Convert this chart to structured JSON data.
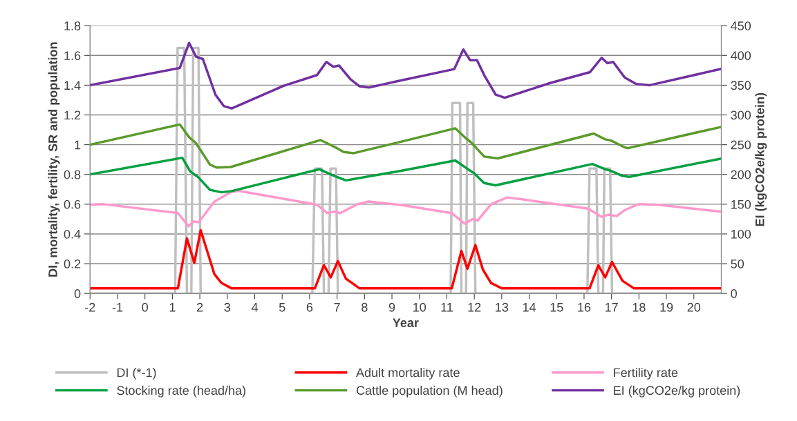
{
  "chart_data": {
    "type": "line",
    "xlabel": "Year",
    "ylabel": "DI, mortality, fertility, SR and population",
    "y2label": "EI (kgCO2e/kg protein)",
    "xlim": [
      -2,
      21
    ],
    "xticks": [
      -2,
      -1,
      0,
      1,
      2,
      3,
      4,
      5,
      6,
      7,
      8,
      9,
      10,
      11,
      12,
      13,
      14,
      15,
      16,
      17,
      18,
      19,
      20
    ],
    "ylim": [
      0,
      1.8
    ],
    "yticks": [
      0,
      0.2,
      0.4,
      0.6,
      0.8,
      1,
      1.2,
      1.4,
      1.6,
      1.8
    ],
    "y2lim": [
      0,
      450
    ],
    "y2ticks": [
      0,
      50,
      100,
      150,
      200,
      250,
      300,
      350,
      400,
      450
    ],
    "grid": "y",
    "legend": "bottom",
    "marker": "none",
    "line_style": "solid",
    "series": [
      {
        "name": "DI (*-1)",
        "color": "#bfbfbf",
        "x": [
          -2,
          1.1,
          1.19,
          1.43,
          1.53,
          1.69,
          1.76,
          1.95,
          2.03,
          6.1,
          6.19,
          6.45,
          6.52,
          6.69,
          6.76,
          6.96,
          7.03,
          11.14,
          11.2,
          11.48,
          11.53,
          11.7,
          11.75,
          11.96,
          12.04,
          16.12,
          16.2,
          16.45,
          16.52,
          16.69,
          16.74,
          16.95,
          17.02,
          20.96
        ],
        "values": [
          0,
          0,
          1.65,
          1.65,
          0,
          0,
          1.65,
          1.65,
          0,
          0,
          0.84,
          0.84,
          0,
          0,
          0.84,
          0.84,
          0,
          0,
          1.28,
          1.28,
          0,
          0,
          1.28,
          1.28,
          0,
          0,
          0.84,
          0.84,
          0,
          0,
          0.84,
          0.84,
          0,
          0
        ]
      },
      {
        "name": "Adult mortality rate",
        "color": "#ff0000",
        "x": [
          -2,
          1.2,
          1.53,
          1.8,
          2.03,
          2.53,
          2.79,
          3.16,
          6.19,
          6.52,
          6.77,
          7.03,
          7.32,
          7.82,
          11.18,
          11.53,
          11.75,
          12.04,
          12.31,
          12.61,
          13.01,
          16.2,
          16.52,
          16.77,
          17.02,
          17.4,
          17.82,
          20.96
        ],
        "values": [
          0.034,
          0.034,
          0.37,
          0.205,
          0.425,
          0.13,
          0.07,
          0.034,
          0.034,
          0.19,
          0.108,
          0.217,
          0.1,
          0.034,
          0.034,
          0.286,
          0.166,
          0.325,
          0.162,
          0.07,
          0.034,
          0.034,
          0.189,
          0.108,
          0.212,
          0.085,
          0.034,
          0.034
        ]
      },
      {
        "name": "Fertility rate",
        "color": "#ff99cc",
        "x": [
          -2,
          -1.5,
          1.2,
          1.59,
          1.77,
          1.96,
          2.53,
          3.12,
          3.4,
          6.26,
          6.65,
          6.9,
          7.11,
          7.74,
          8.15,
          9.33,
          11.18,
          11.64,
          11.94,
          12.12,
          12.61,
          13.2,
          13.79,
          16.14,
          16.64,
          16.9,
          17.19,
          17.48,
          17.98,
          18.73,
          20.96
        ],
        "values": [
          0.597,
          0.6,
          0.54,
          0.451,
          0.484,
          0.48,
          0.617,
          0.68,
          0.69,
          0.597,
          0.54,
          0.55,
          0.54,
          0.6,
          0.618,
          0.595,
          0.54,
          0.47,
          0.5,
          0.49,
          0.6,
          0.645,
          0.632,
          0.57,
          0.515,
          0.53,
          0.52,
          0.56,
          0.6,
          0.596,
          0.55
        ]
      },
      {
        "name": "Stocking rate (head/ha)",
        "color": "#00a040",
        "x": [
          -2,
          1.36,
          1.65,
          1.95,
          2.37,
          2.79,
          3.16,
          6.35,
          6.82,
          7.32,
          9.33,
          11.31,
          11.77,
          11.98,
          12.36,
          12.78,
          16.3,
          16.77,
          16.93,
          17.4,
          17.65,
          20.96
        ],
        "values": [
          0.8,
          0.912,
          0.82,
          0.78,
          0.696,
          0.68,
          0.688,
          0.835,
          0.796,
          0.76,
          0.824,
          0.894,
          0.835,
          0.81,
          0.742,
          0.727,
          0.87,
          0.835,
          0.827,
          0.79,
          0.784,
          0.905
        ]
      },
      {
        "name": "Cattle population (M head)",
        "color": "#5a9a2a",
        "x": [
          -2,
          1.27,
          1.61,
          1.86,
          2.37,
          2.62,
          3.12,
          6.4,
          6.94,
          7.24,
          7.61,
          9.33,
          11.31,
          11.69,
          11.9,
          12.36,
          12.86,
          16.35,
          16.77,
          16.98,
          17.48,
          17.6,
          20.96
        ],
        "values": [
          1.0,
          1.136,
          1.05,
          1.01,
          0.866,
          0.846,
          0.85,
          1.031,
          0.982,
          0.951,
          0.943,
          1.02,
          1.11,
          1.044,
          1.013,
          0.92,
          0.908,
          1.075,
          1.036,
          1.028,
          0.982,
          0.977,
          1.118
        ]
      },
      {
        "name": "EI (kgCO2e/kg protein)",
        "color": "#7030a0",
        "axis": "y2",
        "x": [
          -2,
          1.27,
          1.61,
          1.86,
          2.11,
          2.57,
          2.87,
          3.16,
          5.05,
          6.27,
          6.61,
          6.86,
          7.07,
          7.49,
          7.82,
          8.16,
          9.33,
          11.27,
          11.6,
          11.85,
          12.1,
          12.36,
          12.78,
          13.11,
          14.79,
          16.22,
          16.64,
          16.85,
          17.06,
          17.48,
          17.9,
          18.4,
          20.96
        ],
        "values": [
          350,
          379,
          421,
          398,
          394,
          334,
          315,
          311,
          349,
          367,
          389,
          381,
          383,
          360,
          348,
          346,
          358,
          377,
          410,
          392,
          392,
          367,
          334,
          329,
          354,
          372,
          396,
          387,
          389,
          363,
          352,
          350,
          377
        ]
      }
    ]
  }
}
